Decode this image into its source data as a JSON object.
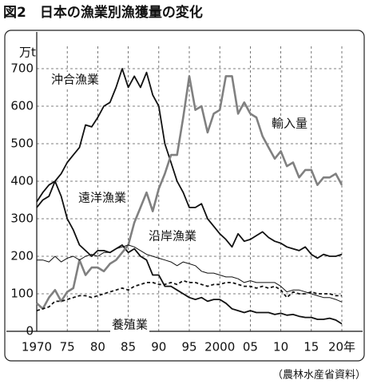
{
  "chart_data": {
    "type": "line",
    "title": "図2　日本の漁業別漁獲量の変化",
    "y_unit": "万t",
    "source": "（農林水産省資料）",
    "x": [
      1970,
      1971,
      1972,
      1973,
      1974,
      1975,
      1976,
      1977,
      1978,
      1979,
      1980,
      1981,
      1982,
      1983,
      1984,
      1985,
      1986,
      1987,
      1988,
      1989,
      1990,
      1991,
      1992,
      1993,
      1994,
      1995,
      1996,
      1997,
      1998,
      1999,
      2000,
      2001,
      2002,
      2003,
      2004,
      2005,
      2006,
      2007,
      2008,
      2009,
      2010,
      2011,
      2012,
      2013,
      2014,
      2015,
      2016,
      2017,
      2018,
      2019,
      2020
    ],
    "xlim": [
      1970,
      2020
    ],
    "xticks": [
      1970,
      {
        "value": 1975,
        "label": "75"
      },
      {
        "value": 1980,
        "label": "80"
      },
      {
        "value": 1985,
        "label": "85"
      },
      {
        "value": 1990,
        "label": "90"
      },
      {
        "value": 1995,
        "label": "95"
      },
      2000,
      {
        "value": 2005,
        "label": "05"
      },
      {
        "value": 2010,
        "label": "10"
      },
      {
        "value": 2015,
        "label": "15"
      },
      {
        "value": 2020,
        "label": "20年"
      }
    ],
    "ylim": [
      0,
      700
    ],
    "yticks": [
      0,
      100,
      200,
      300,
      400,
      500,
      600,
      700
    ],
    "grid": true,
    "series": [
      {
        "name": "沖合漁業",
        "color": "#111111",
        "linewidth": 1.8,
        "linestyle": "solid",
        "values": [
          330,
          350,
          360,
          400,
          420,
          450,
          470,
          490,
          550,
          545,
          570,
          600,
          610,
          650,
          700,
          650,
          680,
          650,
          690,
          630,
          600,
          500,
          450,
          400,
          370,
          330,
          330,
          340,
          300,
          280,
          260,
          245,
          225,
          260,
          240,
          245,
          255,
          265,
          250,
          240,
          235,
          225,
          220,
          215,
          225,
          205,
          195,
          205,
          200,
          200,
          205
        ]
      },
      {
        "name": "遠洋漁業",
        "color": "#111111",
        "linewidth": 1.8,
        "linestyle": "solid",
        "values": [
          345,
          370,
          390,
          400,
          360,
          300,
          270,
          230,
          215,
          200,
          215,
          215,
          210,
          220,
          230,
          210,
          220,
          200,
          190,
          150,
          150,
          120,
          120,
          110,
          100,
          90,
          85,
          90,
          80,
          85,
          85,
          75,
          60,
          55,
          50,
          55,
          50,
          50,
          50,
          45,
          48,
          43,
          45,
          40,
          37,
          37,
          32,
          32,
          35,
          30,
          20
        ]
      },
      {
        "name": "輸入量",
        "color": "#808080",
        "linewidth": 2.6,
        "linestyle": "solid",
        "values": [
          75,
          60,
          90,
          110,
          80,
          105,
          115,
          190,
          150,
          170,
          170,
          160,
          180,
          190,
          210,
          230,
          290,
          330,
          370,
          320,
          380,
          420,
          470,
          470,
          570,
          680,
          590,
          600,
          530,
          580,
          590,
          680,
          680,
          580,
          610,
          580,
          570,
          520,
          490,
          460,
          480,
          440,
          450,
          410,
          430,
          430,
          390,
          410,
          410,
          420,
          390
        ]
      },
      {
        "name": "沿岸漁業",
        "color": "#111111",
        "linewidth": 1,
        "linestyle": "solid",
        "values": [
          190,
          190,
          185,
          200,
          185,
          195,
          200,
          190,
          200,
          205,
          200,
          210,
          210,
          220,
          225,
          230,
          225,
          215,
          205,
          200,
          195,
          190,
          185,
          175,
          185,
          180,
          175,
          160,
          155,
          155,
          150,
          145,
          145,
          140,
          130,
          135,
          130,
          130,
          130,
          130,
          120,
          105,
          110,
          110,
          105,
          100,
          95,
          90,
          90,
          85,
          78
        ]
      },
      {
        "name": "養殖業",
        "color": "#111111",
        "linewidth": 1.8,
        "linestyle": "dashed",
        "values": [
          55,
          60,
          65,
          80,
          80,
          85,
          90,
          95,
          95,
          90,
          95,
          100,
          105,
          110,
          115,
          110,
          120,
          125,
          130,
          130,
          125,
          125,
          130,
          125,
          135,
          130,
          130,
          125,
          120,
          125,
          125,
          130,
          130,
          125,
          120,
          120,
          115,
          120,
          115,
          120,
          110,
          90,
          105,
          100,
          100,
          105,
          100,
          100,
          100,
          95,
          95
        ]
      }
    ]
  }
}
